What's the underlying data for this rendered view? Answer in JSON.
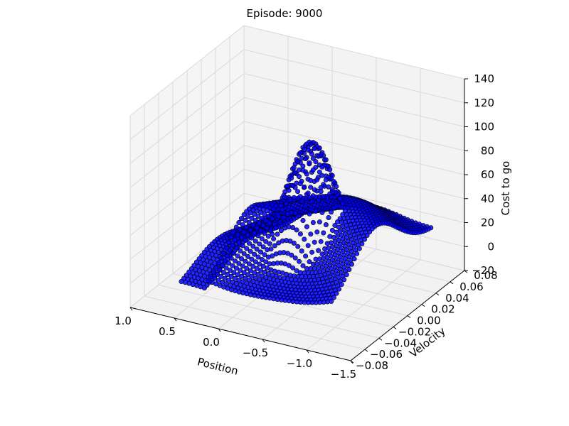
{
  "figure": {
    "title": "Episode: 9000"
  },
  "chart_data": {
    "type": "scatter",
    "projection": "3d",
    "title": "Episode: 9000",
    "xlabel": "Position",
    "ylabel": "Velocity",
    "zlabel": "Cost to go",
    "xlim": [
      -1.5,
      1.0
    ],
    "ylim": [
      -0.08,
      0.08
    ],
    "zlim": [
      -20,
      140
    ],
    "xticks": [
      -1.5,
      -1.0,
      -0.5,
      0.0,
      0.5,
      1.0
    ],
    "xtick_labels": [
      "−1.5",
      "−1.0",
      "−0.5",
      "0.0",
      "0.5",
      "1.0"
    ],
    "yticks": [
      -0.08,
      -0.06,
      -0.04,
      -0.02,
      0.0,
      0.02,
      0.04,
      0.06,
      0.08
    ],
    "ytick_labels": [
      "−0.08",
      "−0.06",
      "−0.04",
      "−0.02",
      "0.00",
      "0.02",
      "0.04",
      "0.06",
      "0.08"
    ],
    "zticks": [
      -20,
      0,
      20,
      40,
      60,
      80,
      100,
      120,
      140
    ],
    "ztick_labels": [
      "−20",
      "0",
      "20",
      "40",
      "60",
      "80",
      "100",
      "120",
      "140"
    ],
    "grid": true,
    "marker_color": "#0000ff",
    "marker_edge_color": "#000000",
    "grid_x": {
      "min": -1.2,
      "max": 0.5,
      "count": 40
    },
    "grid_y": {
      "min": -0.07,
      "max": 0.07,
      "count": 40
    },
    "series": [
      {
        "values_description_note": ""
      }
    ]
  }
}
